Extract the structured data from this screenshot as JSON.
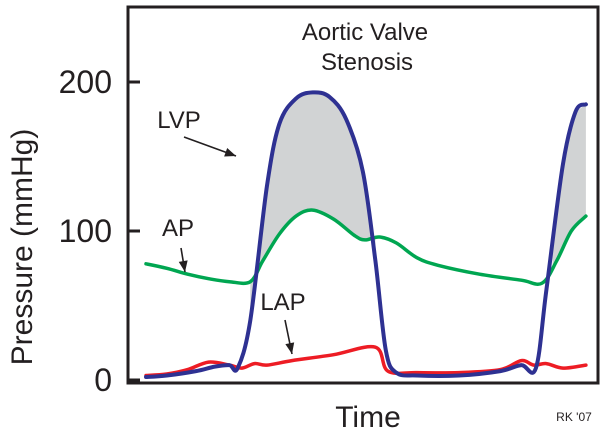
{
  "chart_data": {
    "type": "line",
    "title": "Aortic Valve\nStenosis",
    "xlabel": "Time",
    "ylabel": "Pressure (mmHg)",
    "ylim": [
      0,
      250
    ],
    "yticks": [
      0,
      100,
      200
    ],
    "grid": false,
    "credit": "RK '07",
    "colors": {
      "LVP": "#2e3192",
      "AP": "#00a651",
      "LAP": "#ed1c24",
      "gradient_fill": "#d1d3d4",
      "axis": "#231f20"
    },
    "series": [
      {
        "name": "LVP",
        "values": [
          [
            0.0,
            2
          ],
          [
            0.05,
            3
          ],
          [
            0.12,
            6
          ],
          [
            0.165,
            9
          ],
          [
            0.2,
            10
          ],
          [
            0.22,
            8
          ],
          [
            0.25,
            40
          ],
          [
            0.29,
            130
          ],
          [
            0.32,
            172
          ],
          [
            0.36,
            189
          ],
          [
            0.4,
            193
          ],
          [
            0.44,
            190
          ],
          [
            0.48,
            175
          ],
          [
            0.52,
            140
          ],
          [
            0.55,
            80
          ],
          [
            0.575,
            20
          ],
          [
            0.6,
            5
          ],
          [
            0.65,
            3
          ],
          [
            0.75,
            3
          ],
          [
            0.85,
            6
          ],
          [
            0.9,
            10
          ],
          [
            0.935,
            8
          ],
          [
            0.96,
            60
          ],
          [
            1.0,
            145
          ],
          [
            1.03,
            180
          ],
          [
            1.055,
            185
          ]
        ]
      },
      {
        "name": "AP",
        "values": [
          [
            0.0,
            78
          ],
          [
            0.05,
            75
          ],
          [
            0.1,
            71
          ],
          [
            0.15,
            68
          ],
          [
            0.2,
            66
          ],
          [
            0.25,
            66
          ],
          [
            0.28,
            80
          ],
          [
            0.32,
            98
          ],
          [
            0.36,
            110
          ],
          [
            0.4,
            114
          ],
          [
            0.45,
            108
          ],
          [
            0.5,
            97
          ],
          [
            0.525,
            94
          ],
          [
            0.56,
            96
          ],
          [
            0.6,
            92
          ],
          [
            0.65,
            82
          ],
          [
            0.7,
            77
          ],
          [
            0.8,
            71
          ],
          [
            0.9,
            67
          ],
          [
            0.95,
            65
          ],
          [
            0.985,
            80
          ],
          [
            1.02,
            100
          ],
          [
            1.055,
            110
          ]
        ]
      },
      {
        "name": "LAP",
        "values": [
          [
            0.0,
            3
          ],
          [
            0.05,
            4
          ],
          [
            0.1,
            7
          ],
          [
            0.15,
            12
          ],
          [
            0.2,
            10
          ],
          [
            0.23,
            8
          ],
          [
            0.26,
            11
          ],
          [
            0.29,
            10
          ],
          [
            0.35,
            13
          ],
          [
            0.45,
            17
          ],
          [
            0.55,
            22
          ],
          [
            0.58,
            6
          ],
          [
            0.65,
            5
          ],
          [
            0.75,
            5
          ],
          [
            0.85,
            7
          ],
          [
            0.9,
            13
          ],
          [
            0.93,
            10
          ],
          [
            0.96,
            11
          ],
          [
            1.0,
            8
          ],
          [
            1.055,
            10
          ]
        ]
      }
    ],
    "annotations": [
      {
        "text": "LVP",
        "points_to": "LVP"
      },
      {
        "text": "AP",
        "points_to": "AP"
      },
      {
        "text": "LAP",
        "points_to": "LAP"
      }
    ]
  }
}
